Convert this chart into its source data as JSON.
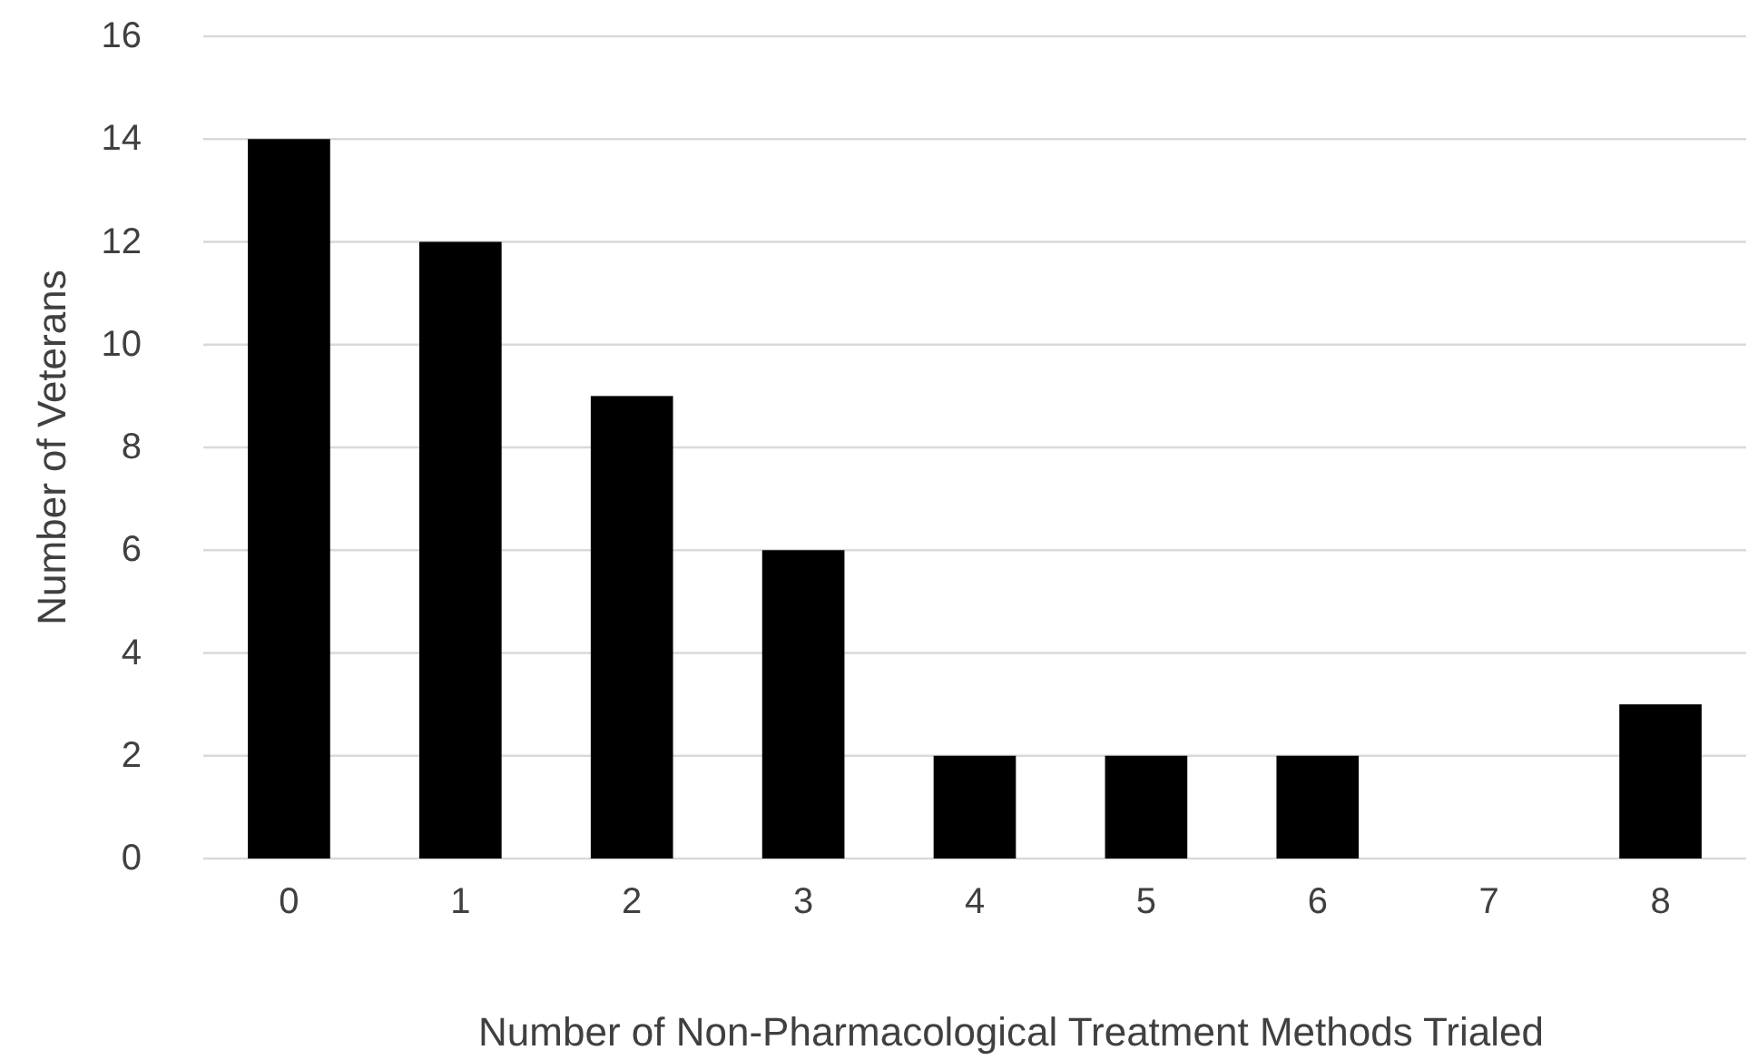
{
  "chart_data": {
    "type": "bar",
    "xlabel": "Number of Non-Pharmacological Treatment Methods Trialed",
    "ylabel": "Number of Veterans",
    "categories": [
      "0",
      "1",
      "2",
      "3",
      "4",
      "5",
      "6",
      "7",
      "8"
    ],
    "values": [
      14,
      12,
      9,
      6,
      2,
      2,
      2,
      0,
      3
    ],
    "color": "#000000",
    "ylim": [
      0,
      16
    ],
    "yticks": [
      0,
      2,
      4,
      6,
      8,
      10,
      12,
      14,
      16
    ],
    "grid": "y"
  }
}
